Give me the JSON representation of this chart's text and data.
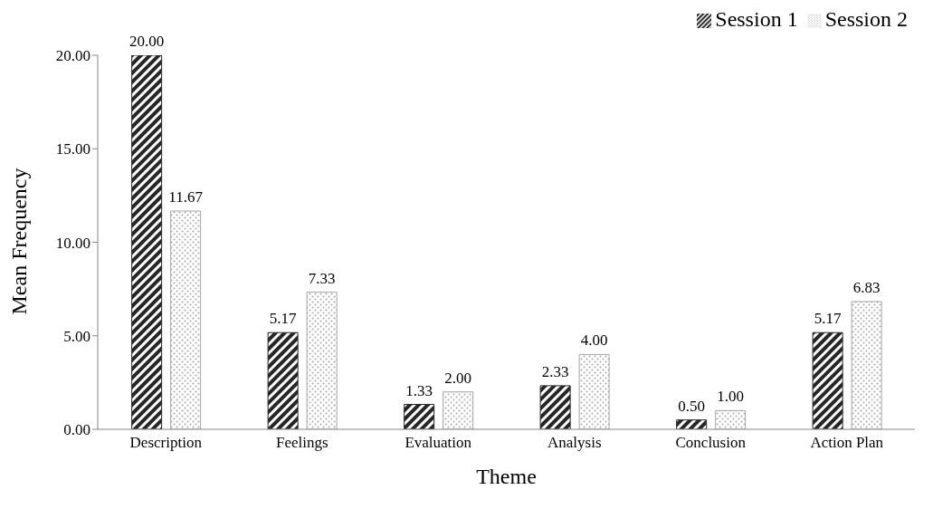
{
  "chart_data": {
    "type": "bar",
    "xlabel": "Theme",
    "ylabel": "Mean Frequency",
    "categories": [
      "Description",
      "Feelings",
      "Evaluation",
      "Analysis",
      "Conclusion",
      "Action Plan"
    ],
    "series": [
      {
        "name": "Session 1",
        "color": "#262626",
        "values": [
          20,
          5.17,
          1.33,
          2.33,
          0.5,
          5.17
        ],
        "value_labels": [
          "20.00",
          "5.17",
          "1.33",
          "2.33",
          "0.50",
          "5.17"
        ]
      },
      {
        "name": "Session 2",
        "color": "#a6a6a6",
        "values": [
          11.67,
          7.33,
          2,
          4,
          1,
          6.83
        ],
        "value_labels": [
          "11.67",
          "7.33",
          "2.00",
          "4.00",
          "1.00",
          "6.83"
        ]
      }
    ],
    "ylim": [
      0,
      20
    ],
    "yticks": [
      {
        "value": 0,
        "label": "0.00"
      },
      {
        "value": 5,
        "label": "5.00"
      },
      {
        "value": 10,
        "label": "10.00"
      },
      {
        "value": 15,
        "label": "15.00"
      },
      {
        "value": 20,
        "label": "20.00"
      }
    ],
    "grid": false,
    "legend": "top right"
  }
}
